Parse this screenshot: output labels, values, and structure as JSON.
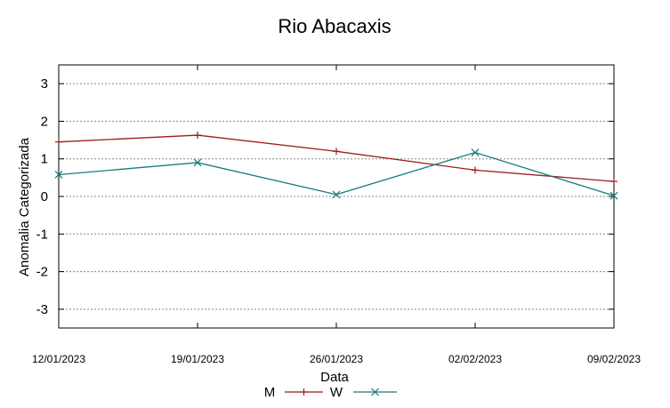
{
  "chart_data": {
    "type": "line",
    "title": "Rio Abacaxis",
    "xlabel": "Data",
    "ylabel": "Anomalia Categorizada",
    "categories": [
      "12/01/2023",
      "19/01/2023",
      "26/01/2023",
      "02/02/2023",
      "09/02/2023"
    ],
    "ylim": [
      -3.5,
      3.5
    ],
    "yticks": [
      3,
      2,
      1,
      0,
      -1,
      -2,
      -3
    ],
    "ytick_labels": [
      "3",
      "2",
      "1",
      "0",
      "-1",
      "-2",
      "-3"
    ],
    "grid": true,
    "legend_position": "bottom-center",
    "series": [
      {
        "name": "M",
        "color": "#9c1b1b",
        "marker": "plus",
        "values": [
          1.45,
          1.63,
          1.2,
          0.7,
          0.4
        ]
      },
      {
        "name": "W",
        "color": "#1a7a7a",
        "marker": "x",
        "values": [
          0.58,
          0.9,
          0.05,
          1.17,
          0.02
        ]
      }
    ]
  }
}
